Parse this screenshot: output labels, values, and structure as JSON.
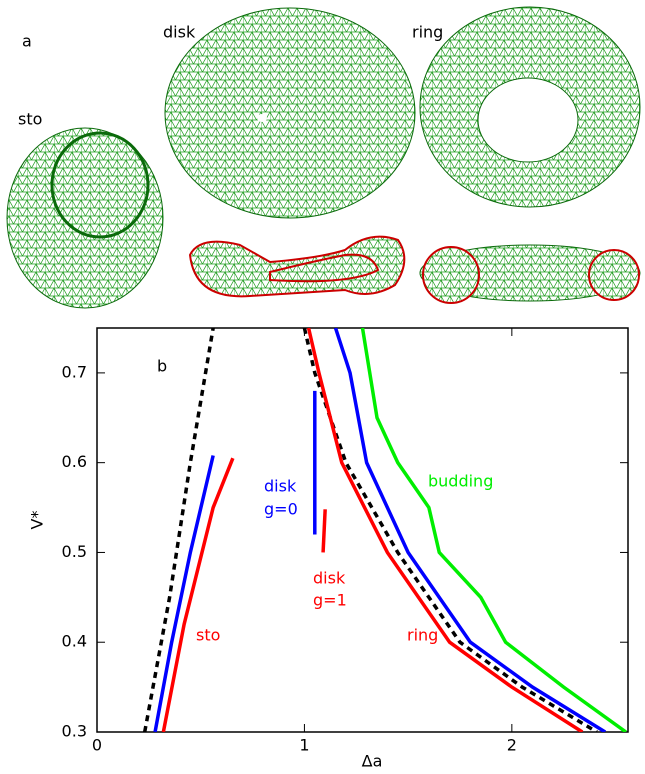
{
  "panel_a": {
    "label": "a",
    "shapes": [
      "sto",
      "disk",
      "ring"
    ]
  },
  "chart_data": {
    "type": "line",
    "panel_label": "b",
    "x_label": "Δa",
    "y_label": "V*",
    "xlim": [
      0,
      2.56
    ],
    "ylim": [
      0.3,
      0.75
    ],
    "xticks": [
      0,
      1,
      2
    ],
    "yticks": [
      0.3,
      0.4,
      0.5,
      0.6,
      0.7
    ],
    "series": [
      {
        "color": "#000000",
        "dashed": true,
        "x": [
          0.23,
          0.35,
          0.45,
          0.56
        ],
        "values": [
          0.3,
          0.45,
          0.6,
          0.75
        ]
      },
      {
        "color": "#0000ff",
        "x": [
          0.28,
          0.36,
          0.45,
          0.56
        ],
        "values": [
          0.3,
          0.4,
          0.5,
          0.608
        ]
      },
      {
        "color": "#ff0000",
        "x": [
          0.32,
          0.42,
          0.56,
          0.655
        ],
        "values": [
          0.3,
          0.42,
          0.55,
          0.605
        ]
      },
      {
        "color": "#0000ff",
        "x": [
          1.05,
          1.05
        ],
        "values": [
          0.52,
          0.68
        ]
      },
      {
        "color": "#ff0000",
        "x": [
          1.09,
          1.1
        ],
        "values": [
          0.5,
          0.548
        ]
      },
      {
        "color": "#000000",
        "dashed": true,
        "x": [
          1.0,
          1.05,
          1.2,
          1.45,
          1.75,
          2.05,
          2.41
        ],
        "values": [
          0.75,
          0.7,
          0.6,
          0.5,
          0.4,
          0.35,
          0.3
        ]
      },
      {
        "color": "#ff0000",
        "x": [
          1.02,
          1.07,
          1.18,
          1.4,
          1.7,
          2.0,
          2.34
        ],
        "values": [
          0.75,
          0.7,
          0.6,
          0.5,
          0.4,
          0.35,
          0.3
        ]
      },
      {
        "color": "#0000ff",
        "x": [
          1.15,
          1.22,
          1.3,
          1.5,
          1.8,
          2.1,
          2.45
        ],
        "values": [
          0.75,
          0.7,
          0.6,
          0.5,
          0.4,
          0.35,
          0.3
        ]
      },
      {
        "color": "#00ee00",
        "x": [
          1.28,
          1.35,
          1.45,
          1.6,
          1.65,
          1.85,
          1.97,
          2.25,
          2.55
        ],
        "values": [
          0.75,
          0.65,
          0.6,
          0.55,
          0.5,
          0.45,
          0.4,
          0.35,
          0.3
        ]
      }
    ],
    "annotations": [
      {
        "text": "sto",
        "color": "#ff0000"
      },
      {
        "text": "disk",
        "color": "#0000ff"
      },
      {
        "text": "g=0",
        "color": "#0000ff"
      },
      {
        "text": "disk",
        "color": "#ff0000"
      },
      {
        "text": "g=1",
        "color": "#ff0000"
      },
      {
        "text": "ring",
        "color": "#ff0000"
      },
      {
        "text": "budding",
        "color": "#00ee00"
      }
    ]
  }
}
